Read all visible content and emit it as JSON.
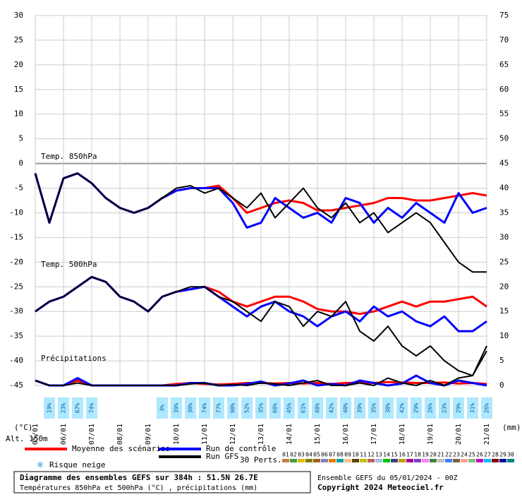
{
  "chart_data": {
    "type": "line",
    "t850_label": "Temp. 850hPa",
    "t500_label": "Temp. 500hPa",
    "precip_label": "Précipitations",
    "y_unit": "(°C)",
    "y2_unit": "(mm)",
    "altitude": "Alt. 150m",
    "categories": [
      "05/01",
      null,
      "06/01",
      null,
      "07/01",
      null,
      "08/01",
      null,
      "09/01",
      null,
      "10/01",
      null,
      "11/01",
      null,
      "12/01",
      null,
      "13/01",
      null,
      "14/01",
      null,
      "15/01",
      null,
      "16/01",
      null,
      "17/01",
      null,
      "18/01",
      null,
      "19/01",
      null,
      "20/01",
      null,
      "21/01"
    ],
    "ylim": [
      -45,
      30
    ],
    "yticks": [
      -45,
      -40,
      -35,
      -30,
      -25,
      -20,
      -15,
      -10,
      -5,
      0,
      5,
      10,
      15,
      20,
      25,
      30
    ],
    "y2lim": [
      0,
      75
    ],
    "y2ticks": [
      0,
      5,
      10,
      15,
      20,
      25,
      30,
      35,
      40,
      45,
      50,
      55,
      60,
      65,
      70,
      75
    ],
    "grid": true,
    "series": [
      {
        "name": "Moyenne des scénarios",
        "color": "#ff0000",
        "t850": [
          -2,
          -12,
          -3,
          -2,
          -4,
          -7,
          -9,
          -10,
          -9,
          -7,
          -5.5,
          -5,
          -5,
          -4.5,
          -7,
          -10,
          -9,
          -8,
          -7.5,
          -8,
          -9.5,
          -9.5,
          -9,
          -8.5,
          -8,
          -7,
          -7,
          -7.5,
          -7.5,
          -7,
          -6.5,
          -6,
          -6.5
        ],
        "t500": [
          -30,
          -28,
          -27,
          -25,
          -23,
          -24,
          -27,
          -28,
          -30,
          -27,
          -26,
          -25.5,
          -25,
          -26,
          -28,
          -29,
          -28,
          -27,
          -27,
          -28,
          -29.5,
          -30,
          -30,
          -30.5,
          -30,
          -29,
          -28,
          -29,
          -28,
          -28,
          -27.5,
          -27,
          -29
        ],
        "precip": [
          1,
          0,
          0,
          1,
          0,
          0,
          0,
          0,
          0,
          0,
          0.3,
          0.5,
          0.3,
          0.2,
          0.3,
          0.5,
          0.5,
          0.4,
          0.5,
          0.4,
          0.5,
          0.3,
          0.5,
          0.6,
          0.5,
          0.7,
          0.6,
          0.5,
          0.5,
          0.6,
          0.4,
          0.5,
          0.3
        ]
      },
      {
        "name": "Run de contrôle",
        "color": "#0000ff",
        "t850": [
          -2,
          -12,
          -3,
          -2,
          -4,
          -7,
          -9,
          -10,
          -9,
          -7,
          -5.5,
          -5,
          -5,
          -5,
          -8,
          -13,
          -12,
          -7,
          -9,
          -11,
          -10,
          -12,
          -7,
          -8,
          -12,
          -9,
          -11,
          -8,
          -10,
          -12,
          -6,
          -10,
          -9
        ],
        "t500": [
          -30,
          -28,
          -27,
          -25,
          -23,
          -24,
          -27,
          -28,
          -30,
          -27,
          -26,
          -25.5,
          -25,
          -27,
          -29,
          -31,
          -29,
          -28,
          -30,
          -31,
          -33,
          -31,
          -30,
          -32,
          -29,
          -31,
          -30,
          -32,
          -33,
          -31,
          -34,
          -34,
          -32
        ],
        "precip": [
          1,
          0,
          0,
          1.5,
          0,
          0,
          0,
          0,
          0,
          0,
          0,
          0.5,
          0.5,
          0,
          0,
          0.3,
          0.8,
          0,
          0.4,
          1,
          0,
          0.3,
          0,
          1,
          0.5,
          0,
          0.4,
          2,
          0.5,
          0,
          1,
          0.5,
          0
        ]
      },
      {
        "name": "Run GFS",
        "color": "#000000",
        "t850": [
          -2,
          -12,
          -3,
          -2,
          -4,
          -7,
          -9,
          -10,
          -9,
          -7,
          -5,
          -4.5,
          -6,
          -5,
          -7,
          -9,
          -6,
          -11,
          -8,
          -5,
          -9,
          -11,
          -8,
          -12,
          -10,
          -14,
          -12,
          -10,
          -12,
          -16,
          -20,
          -22,
          -22
        ],
        "t500": [
          -30,
          -28,
          -27,
          -25,
          -23,
          -24,
          -27,
          -28,
          -30,
          -27,
          -26,
          -25,
          -25,
          -27,
          -28,
          -30,
          -32,
          -28,
          -29,
          -33,
          -30,
          -31,
          -28,
          -34,
          -36,
          -33,
          -37,
          -39,
          -37,
          -40,
          -42,
          -43,
          -38
        ],
        "precip": [
          1,
          0,
          0,
          0.5,
          0,
          0,
          0,
          0,
          0,
          0,
          0,
          0.3,
          0.5,
          0,
          0.2,
          0,
          0.5,
          0.3,
          0,
          0.5,
          1,
          0,
          0,
          0.5,
          0,
          1.5,
          0.5,
          0,
          1,
          0,
          1.5,
          2,
          8
        ]
      }
    ],
    "snow_label": "Risque neige",
    "snow_risk": {
      "values": [
        null,
        19,
        23,
        67,
        74,
        null,
        null,
        null,
        null,
        3,
        39,
        30,
        74,
        77,
        90,
        52,
        35,
        68,
        45,
        61,
        48,
        42,
        40,
        39,
        35,
        38,
        42,
        29,
        26,
        23,
        29,
        31,
        26
      ],
      "value_labels": [
        null,
        "19%",
        "23%",
        "67%",
        "74%",
        null,
        null,
        null,
        null,
        "3%",
        "39%",
        "30%",
        "74%",
        "77%",
        "90%",
        "52%",
        "35%",
        "68%",
        "45%",
        "61%",
        "48%",
        "42%",
        "40%",
        "39%",
        "35%",
        "38%",
        "42%",
        "29%",
        "26%",
        "23%",
        "29%",
        "31%",
        "26%"
      ]
    },
    "perturbations_label": "30 Perts.",
    "perturbations": [
      {
        "name": "01",
        "color": "#c08040"
      },
      {
        "name": "02",
        "color": "#40a040"
      },
      {
        "name": "03",
        "color": "#e0c000"
      },
      {
        "name": "04",
        "color": "#808000"
      },
      {
        "name": "05",
        "color": "#a06020"
      },
      {
        "name": "06",
        "color": "#8080c0"
      },
      {
        "name": "07",
        "color": "#e08000"
      },
      {
        "name": "08",
        "color": "#00a0a0"
      },
      {
        "name": "09",
        "color": "#ffc080"
      },
      {
        "name": "10",
        "color": "#604000"
      },
      {
        "name": "11",
        "color": "#c0c000"
      },
      {
        "name": "12",
        "color": "#c06060"
      },
      {
        "name": "13",
        "color": "#a0c0e0"
      },
      {
        "name": "14",
        "color": "#00c000"
      },
      {
        "name": "15",
        "color": "#404080"
      },
      {
        "name": "16",
        "color": "#c0a000"
      },
      {
        "name": "17",
        "color": "#a000a0"
      },
      {
        "name": "18",
        "color": "#8040c0"
      },
      {
        "name": "19",
        "color": "#ff80ff"
      },
      {
        "name": "20",
        "color": "#408040"
      },
      {
        "name": "21",
        "color": "#c0c0c0"
      },
      {
        "name": "22",
        "color": "#4080ff"
      },
      {
        "name": "23",
        "color": "#806040"
      },
      {
        "name": "24",
        "color": "#ffa0a0"
      },
      {
        "name": "25",
        "color": "#80c080"
      },
      {
        "name": "26",
        "color": "#c000c0"
      },
      {
        "name": "27",
        "color": "#00c0ff"
      },
      {
        "name": "28",
        "color": "#800000"
      },
      {
        "name": "29",
        "color": "#0000a0"
      },
      {
        "name": "30",
        "color": "#008080"
      }
    ],
    "title": "Diagramme des ensembles GEFS sur 384h : 51.5N 26.7E",
    "subtitle": "Températures 850hPa et 500hPa (°C) , précipitations (mm)",
    "run_info": "Ensemble GEFS du 05/01/2024 - 00Z",
    "copyright": "Copyright 2024 Meteociel.fr"
  }
}
